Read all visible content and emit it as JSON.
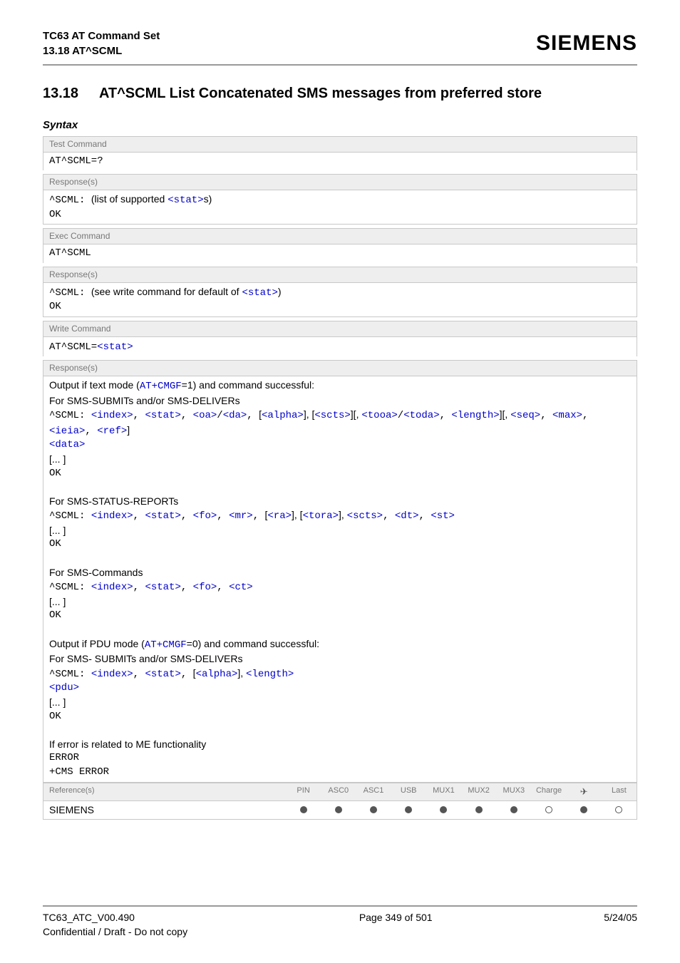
{
  "header": {
    "title": "TC63 AT Command Set",
    "subtitle": "13.18 AT^SCML",
    "logo": "SIEMENS"
  },
  "section": {
    "number": "13.18",
    "title": "AT^SCML   List Concatenated SMS messages from preferred store"
  },
  "syntax_label": "Syntax",
  "labels": {
    "test_command": "Test Command",
    "exec_command": "Exec Command",
    "write_command": "Write Command",
    "responses": "Response(s)",
    "references": "Reference(s)"
  },
  "test": {
    "cmd": "AT^SCML=?",
    "resp1a": "^SCML: ",
    "resp1b": "(list of supported ",
    "resp1c": "<stat>",
    "resp1d": "s)",
    "ok": "OK"
  },
  "exec": {
    "cmd": "AT^SCML",
    "resp1a": "^SCML: ",
    "resp1b": "(see write command for default of ",
    "resp1c": "<stat>",
    "resp1d": ")",
    "ok": "OK"
  },
  "write": {
    "cmd_a": "AT^SCML=",
    "cmd_b": "<stat>",
    "out1a": "Output if text mode (",
    "out1b": "AT+CMGF",
    "out1c": "=1) and command successful:",
    "out2": "For SMS-SUBMITs and/or SMS-DELIVERs",
    "l1a": "^SCML: ",
    "p_index": "<index>",
    "p_stat": "<stat>",
    "p_oa": "<oa>",
    "p_da": "<da>",
    "p_alpha": "<alpha>",
    "p_scts": "<scts>",
    "p_tooa": "<tooa>",
    "p_toda": "<toda>",
    "p_length": "<length>",
    "p_seq": "<seq>",
    "p_max": "<max>",
    "p_ieia": "<ieia>",
    "p_ref": "<ref>",
    "p_data": "<data>",
    "p_fo": "<fo>",
    "p_mr": "<mr>",
    "p_ra": "<ra>",
    "p_tora": "<tora>",
    "p_dt": "<dt>",
    "p_st": "<st>",
    "p_ct": "<ct>",
    "p_pdu": "<pdu>",
    "ellips": "[... ]",
    "ok": "OK",
    "status_hdr": "For SMS-STATUS-REPORTs",
    "cmds_hdr": "For SMS-Commands",
    "out_pdu_a": "Output if PDU mode (",
    "out_pdu_b": "AT+CMGF",
    "out_pdu_c": "=0) and command successful:",
    "out_pdu2": "For SMS- SUBMITs and/or SMS-DELIVERs",
    "err1": "If error is related to ME functionality",
    "err2": "ERROR",
    "err3": "+CMS ERROR"
  },
  "ref": {
    "siemens": "SIEMENS",
    "cols": [
      "PIN",
      "ASC0",
      "ASC1",
      "USB",
      "MUX1",
      "MUX2",
      "MUX3",
      "Charge",
      "✈",
      "Last"
    ],
    "vals": [
      "filled",
      "filled",
      "filled",
      "filled",
      "filled",
      "filled",
      "filled",
      "empty",
      "filled",
      "empty"
    ]
  },
  "footer": {
    "left1": "TC63_ATC_V00.490",
    "left2": "Confidential / Draft - Do not copy",
    "center": "Page 349 of 501",
    "right": "5/24/05"
  }
}
